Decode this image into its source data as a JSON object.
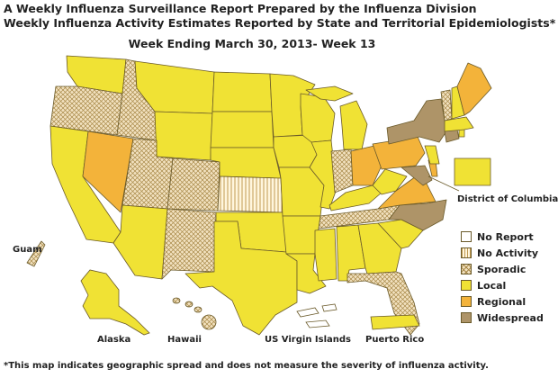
{
  "header": {
    "line1": "A Weekly Influenza Surveillance Report Prepared by the Influenza Division",
    "line2": "Weekly Influenza Activity Estimates Reported by State and Territorial Epidemiologists*",
    "week": "Week Ending March 30, 2013- Week 13"
  },
  "footnote": "*This map indicates geographic spread and does not measure the severity of influenza activity.",
  "colors": {
    "no_report": "#ffffff",
    "no_activity_bg": "#fff6dd",
    "no_activity_line": "#c09a52",
    "sporadic_bg": "#f2e2c0",
    "sporadic_line": "#a88848",
    "local": "#f0e234",
    "regional": "#f3b33a",
    "widespread": "#ae9468",
    "border": "#6a5a2a"
  },
  "legend": [
    {
      "label": "No Report",
      "key": "no_report"
    },
    {
      "label": "No Activity",
      "key": "no_activity"
    },
    {
      "label": "Sporadic",
      "key": "sporadic"
    },
    {
      "label": "Local",
      "key": "local"
    },
    {
      "label": "Regional",
      "key": "regional"
    },
    {
      "label": "Widespread",
      "key": "widespread"
    }
  ],
  "labels": {
    "dc": "District of Columbia",
    "guam": "Guam",
    "alaska": "Alaska",
    "hawaii": "Hawaii",
    "usvi": "US Virgin Islands",
    "pr": "Puerto Rico"
  },
  "regions": {
    "WA": "local",
    "OR": "sporadic",
    "CA": "local",
    "NV": "regional",
    "ID": "sporadic",
    "MT": "local",
    "WY": "local",
    "UT": "sporadic",
    "AZ": "local",
    "CO": "sporadic",
    "NM": "sporadic",
    "ND": "local",
    "SD": "local",
    "NE": "local",
    "KS": "no_activity",
    "OK": "local",
    "TX": "local",
    "MN": "local",
    "IA": "local",
    "MO": "local",
    "AR": "local",
    "LA": "local",
    "WI": "local",
    "IL": "local",
    "MI": "local",
    "IN": "sporadic",
    "OH": "regional",
    "KY": "local",
    "TN": "sporadic",
    "MS": "local",
    "AL": "local",
    "GA": "local",
    "FL": "sporadic",
    "SC": "local",
    "NC": "widespread",
    "VA": "regional",
    "WV": "local",
    "PA": "regional",
    "NY": "widespread",
    "MD": "widespread",
    "DE": "regional",
    "NJ": "local",
    "CT": "widespread",
    "RI": "local",
    "MA": "local",
    "VT": "sporadic",
    "NH": "local",
    "ME": "regional",
    "DC": "local",
    "AK": "local",
    "HI": "sporadic",
    "GU": "sporadic",
    "VI": "no_report",
    "PR": "local"
  }
}
